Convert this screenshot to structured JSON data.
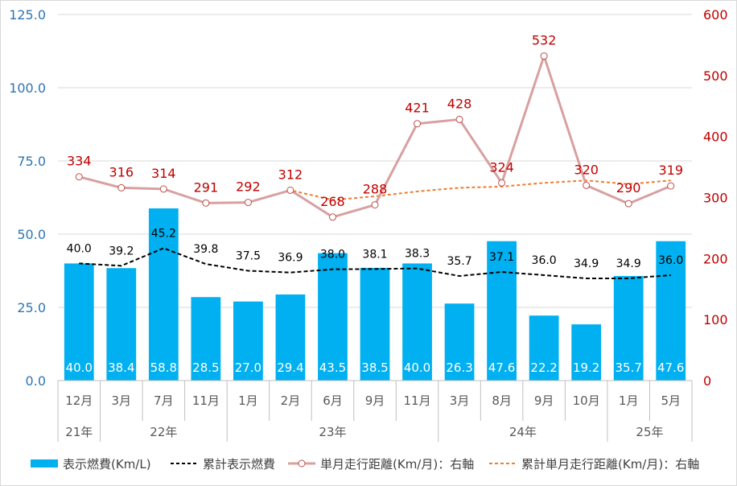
{
  "colors": {
    "bar": "#00B0F0",
    "cum_fuel_line": "#000000",
    "monthly_km_line": "#D8A0A0",
    "monthly_km_label": "#C00000",
    "cum_km_line": "#ED7D31",
    "left_axis_text": "#2E75B6",
    "right_axis_text": "#C00000",
    "category_text": "#595959",
    "bar_label_text": "#ffffff",
    "grid": "#d9d9d9"
  },
  "chart_data": {
    "type": "bar",
    "title": "",
    "categories": [
      "12月",
      "3月",
      "7月",
      "11月",
      "1月",
      "2月",
      "6月",
      "9月",
      "11月",
      "3月",
      "8月",
      "9月",
      "10月",
      "1月",
      "5月"
    ],
    "year_groups": [
      {
        "label": "21年",
        "count": 1
      },
      {
        "label": "22年",
        "count": 3
      },
      {
        "label": "23年",
        "count": 5
      },
      {
        "label": "24年",
        "count": 4
      },
      {
        "label": "25年",
        "count": 2
      }
    ],
    "left_axis": {
      "min": 0,
      "max": 125,
      "ticks": [
        "0.0",
        "25.0",
        "50.0",
        "75.0",
        "100.0",
        "125.0"
      ]
    },
    "right_axis": {
      "min": 0,
      "max": 600,
      "ticks": [
        "0",
        "100",
        "200",
        "300",
        "400",
        "500",
        "600"
      ]
    },
    "grid": true,
    "legend_position": "bottom",
    "series": [
      {
        "name": "表示燃費(Km/L)",
        "type": "bar",
        "axis": "left",
        "values": [
          40.0,
          38.4,
          58.8,
          28.5,
          27.0,
          29.4,
          43.5,
          38.5,
          40.0,
          26.3,
          47.6,
          22.2,
          19.2,
          35.7,
          47.6
        ],
        "labels": [
          "40.0",
          "38.4",
          "58.8",
          "28.5",
          "27.0",
          "29.4",
          "43.5",
          "38.5",
          "40.0",
          "26.3",
          "47.6",
          "22.2",
          "19.2",
          "35.7",
          "47.6"
        ]
      },
      {
        "name": "累計表示燃費",
        "type": "line",
        "style": "dashed",
        "axis": "left",
        "values": [
          40.0,
          39.2,
          45.2,
          39.8,
          37.5,
          36.9,
          38.0,
          38.1,
          38.3,
          35.7,
          37.1,
          36.0,
          34.9,
          34.9,
          36.0
        ],
        "labels": [
          "40.0",
          "39.2",
          "45.2",
          "39.8",
          "37.5",
          "36.9",
          "38.0",
          "38.1",
          "38.3",
          "35.7",
          "37.1",
          "36.0",
          "34.9",
          "34.9",
          "36.0"
        ]
      },
      {
        "name": "単月走行距離(Km/月)：右軸",
        "type": "line",
        "style": "solid-marker",
        "axis": "right",
        "values": [
          334,
          316,
          314,
          291,
          292,
          312,
          268,
          288,
          421,
          428,
          324,
          532,
          320,
          290,
          319
        ],
        "labels": [
          "334",
          "316",
          "314",
          "291",
          "292",
          "312",
          "268",
          "288",
          "421",
          "428",
          "324",
          "532",
          "320",
          "290",
          "319"
        ]
      },
      {
        "name": "累計単月走行距離(Km/月)：右軸",
        "type": "line",
        "style": "dashed",
        "axis": "right",
        "values": [
          334,
          316,
          314,
          291,
          292,
          312,
          296,
          302,
          310,
          316,
          318,
          324,
          328,
          322,
          328
        ]
      }
    ]
  }
}
